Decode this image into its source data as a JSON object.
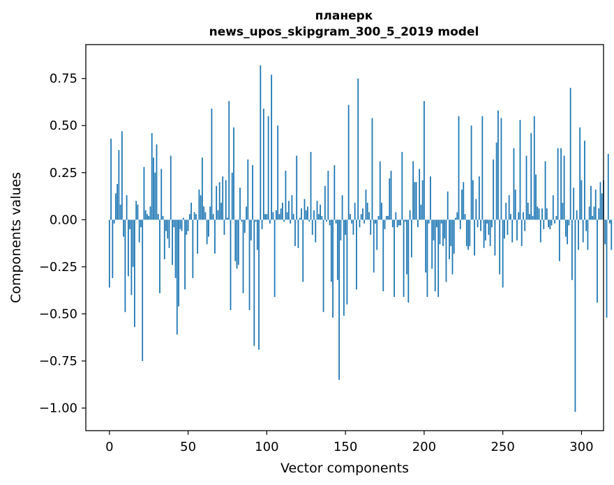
{
  "chart_data": {
    "type": "bar",
    "title": "планерк",
    "subtitle": "news_upos_skipgram_300_5_2019 model",
    "xlabel": "Vector components",
    "ylabel": "Components values",
    "xlim": [
      -15,
      314
    ],
    "ylim": [
      -1.12,
      0.93
    ],
    "xticks": [
      0,
      50,
      100,
      150,
      200,
      250,
      300
    ],
    "xtick_labels": [
      "0",
      "50",
      "100",
      "150",
      "200",
      "250",
      "300"
    ],
    "yticks": [
      0.75,
      0.5,
      0.25,
      0.0,
      -0.25,
      -0.5,
      -0.75,
      -1.0
    ],
    "ytick_labels": [
      "0.75",
      "0.50",
      "0.25",
      "0.00",
      "−0.25",
      "−0.50",
      "−0.75",
      "−1.00"
    ],
    "bar_color": "#1f77b4",
    "values": [
      -0.36,
      0.43,
      -0.31,
      -0.02,
      0.14,
      0.19,
      0.37,
      0.08,
      0.47,
      -0.09,
      -0.49,
      0.13,
      -0.3,
      -0.05,
      -0.4,
      -0.25,
      -0.57,
      0.1,
      0.08,
      -0.12,
      -0.04,
      -0.75,
      0.28,
      0.05,
      0.03,
      0.02,
      0.07,
      0.46,
      0.33,
      0.25,
      0.4,
      0.03,
      -0.39,
      0.27,
      0.02,
      -0.21,
      -0.06,
      -0.1,
      -0.15,
      0.34,
      -0.24,
      -0.04,
      -0.31,
      -0.61,
      -0.46,
      -0.05,
      -0.06,
      0.01,
      -0.37,
      -0.08,
      -0.06,
      0.03,
      0.09,
      -0.31,
      0.04,
      0.03,
      -0.18,
      0.16,
      0.13,
      0.33,
      0.07,
      0.04,
      -0.13,
      -0.09,
      0.07,
      0.59,
      0.03,
      -0.18,
      0.18,
      0.05,
      0.2,
      0.09,
      0.23,
      -0.08,
      0.21,
      0.01,
      0.63,
      -0.48,
      0.25,
      0.49,
      -0.22,
      -0.26,
      -0.24,
      0.17,
      -0.01,
      -0.39,
      -0.07,
      0.07,
      0.32,
      -0.48,
      -0.11,
      0.29,
      -0.67,
      -0.01,
      -0.16,
      -0.69,
      0.82,
      -0.05,
      0.59,
      0.03,
      0.03,
      0.55,
      -0.02,
      0.77,
      0.04,
      -0.41,
      0.05,
      0.5,
      0.03,
      0.06,
      0.09,
      -0.01,
      0.26,
      0.04,
      0.1,
      -0.02,
      0.13,
      0.03,
      -0.14,
      0.34,
      -0.15,
      0.01,
      0.06,
      -0.33,
      0.11,
      0.05,
      0.07,
      -0.01,
      0.36,
      -0.08,
      0.05,
      -0.12,
      0.1,
      0.03,
      0.08,
      0.02,
      -0.49,
      0.18,
      -0.01,
      0.26,
      -0.03,
      -0.33,
      -0.52,
      0.29,
      -0.02,
      -0.32,
      -0.85,
      -0.11,
      0.13,
      -0.51,
      -0.08,
      -0.45,
      0.61,
      0.03,
      -0.02,
      -0.08,
      0.09,
      -0.37,
      0.75,
      -0.04,
      0.03,
      0.06,
      -0.02,
      0.16,
      0.09,
      0.04,
      -0.08,
      0.54,
      -0.28,
      -0.02,
      -0.16,
      0.02,
      0.31,
      0.09,
      -0.38,
      -0.05,
      0.02,
      0.02,
      0.22,
      0.26,
      -0.04,
      -0.41,
      0.04,
      -0.04,
      -0.03,
      -0.03,
      0.36,
      -0.41,
      -0.01,
      -0.29,
      -0.44,
      0.05,
      -0.2,
      0.31,
      0.2,
      0.2,
      -0.04,
      0.27,
      0.08,
      0.21,
      0.63,
      -0.28,
      -0.41,
      -0.02,
      0.23,
      -0.26,
      -0.11,
      -0.38,
      -0.04,
      -0.41,
      -0.13,
      -0.02,
      -0.14,
      -0.1,
      -0.33,
      0.15,
      -0.21,
      -0.14,
      -0.29,
      -0.18,
      0.01,
      0.04,
      0.55,
      -0.05,
      0.16,
      0.2,
      0.03,
      -0.14,
      -0.16,
      -0.14,
      0.5,
      0.21,
      -0.19,
      0.11,
      -0.04,
      0.23,
      -0.06,
      0.55,
      -0.15,
      -0.11,
      -0.02,
      -0.08,
      -0.14,
      -0.04,
      0.32,
      -0.19,
      0.41,
      0.58,
      -0.29,
      0.54,
      -0.36,
      -0.1,
      0.09,
      -0.08,
      0.13,
      0.03,
      -0.12,
      0.38,
      0.16,
      -0.11,
      0.04,
      0.53,
      -0.14,
      0.04,
      -0.06,
      0.34,
      0.09,
      0.03,
      0.46,
      0.02,
      0.55,
      0.24,
      0.07,
      0.06,
      -0.12,
      0.06,
      -0.05,
      0.31,
      0.06,
      -0.04,
      -0.05,
      -0.03,
      0.13,
      -0.02,
      0.02,
      0.38,
      -0.22,
      0.38,
      0.09,
      0.34,
      -0.09,
      -0.13,
      -0.03,
      0.7,
      -0.32,
      0.17,
      -1.02,
      0.05,
      -0.16,
      0.49,
      0.21,
      -0.12,
      0.42,
      -0.06,
      -0.16,
      0.07,
      0.18,
      0.02,
      0.07,
      0.16,
      -0.44,
      0.06,
      0.2,
      0.14,
      0.21,
      -0.13,
      -0.52,
      0.35,
      -0.02,
      -0.16
    ]
  }
}
